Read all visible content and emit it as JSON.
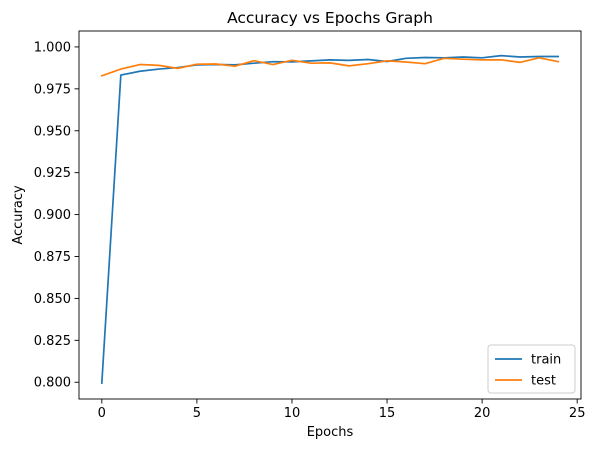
{
  "chart_data": {
    "type": "line",
    "title": "Accuracy vs Epochs Graph",
    "xlabel": "Epochs",
    "ylabel": "Accuracy",
    "xlim": [
      -1.2,
      25.2
    ],
    "ylim": [
      0.79,
      1.0095
    ],
    "xticks": [
      0,
      5,
      10,
      15,
      20,
      25
    ],
    "yticks": [
      0.8,
      0.825,
      0.85,
      0.875,
      0.9,
      0.925,
      0.95,
      0.975,
      1.0
    ],
    "grid": false,
    "legend_position": "lower-right",
    "x": [
      0,
      1,
      2,
      3,
      4,
      5,
      6,
      7,
      8,
      9,
      10,
      11,
      12,
      13,
      14,
      15,
      16,
      17,
      18,
      19,
      20,
      21,
      22,
      23,
      24
    ],
    "series": [
      {
        "name": "train",
        "color": "#1f77b4",
        "values": [
          0.7995,
          0.9832,
          0.9855,
          0.9868,
          0.9877,
          0.9893,
          0.9895,
          0.9893,
          0.9903,
          0.9912,
          0.9911,
          0.9917,
          0.9923,
          0.992,
          0.9925,
          0.9913,
          0.9932,
          0.9937,
          0.9935,
          0.994,
          0.9935,
          0.9948,
          0.994,
          0.9943,
          0.9943
        ]
      },
      {
        "name": "test",
        "color": "#ff7f0e",
        "values": [
          0.9828,
          0.9868,
          0.9895,
          0.989,
          0.9872,
          0.9897,
          0.9898,
          0.9885,
          0.9918,
          0.9895,
          0.992,
          0.9903,
          0.9905,
          0.9887,
          0.99,
          0.9917,
          0.991,
          0.99,
          0.9932,
          0.9927,
          0.9923,
          0.9923,
          0.9908,
          0.9935,
          0.9912
        ]
      }
    ]
  }
}
